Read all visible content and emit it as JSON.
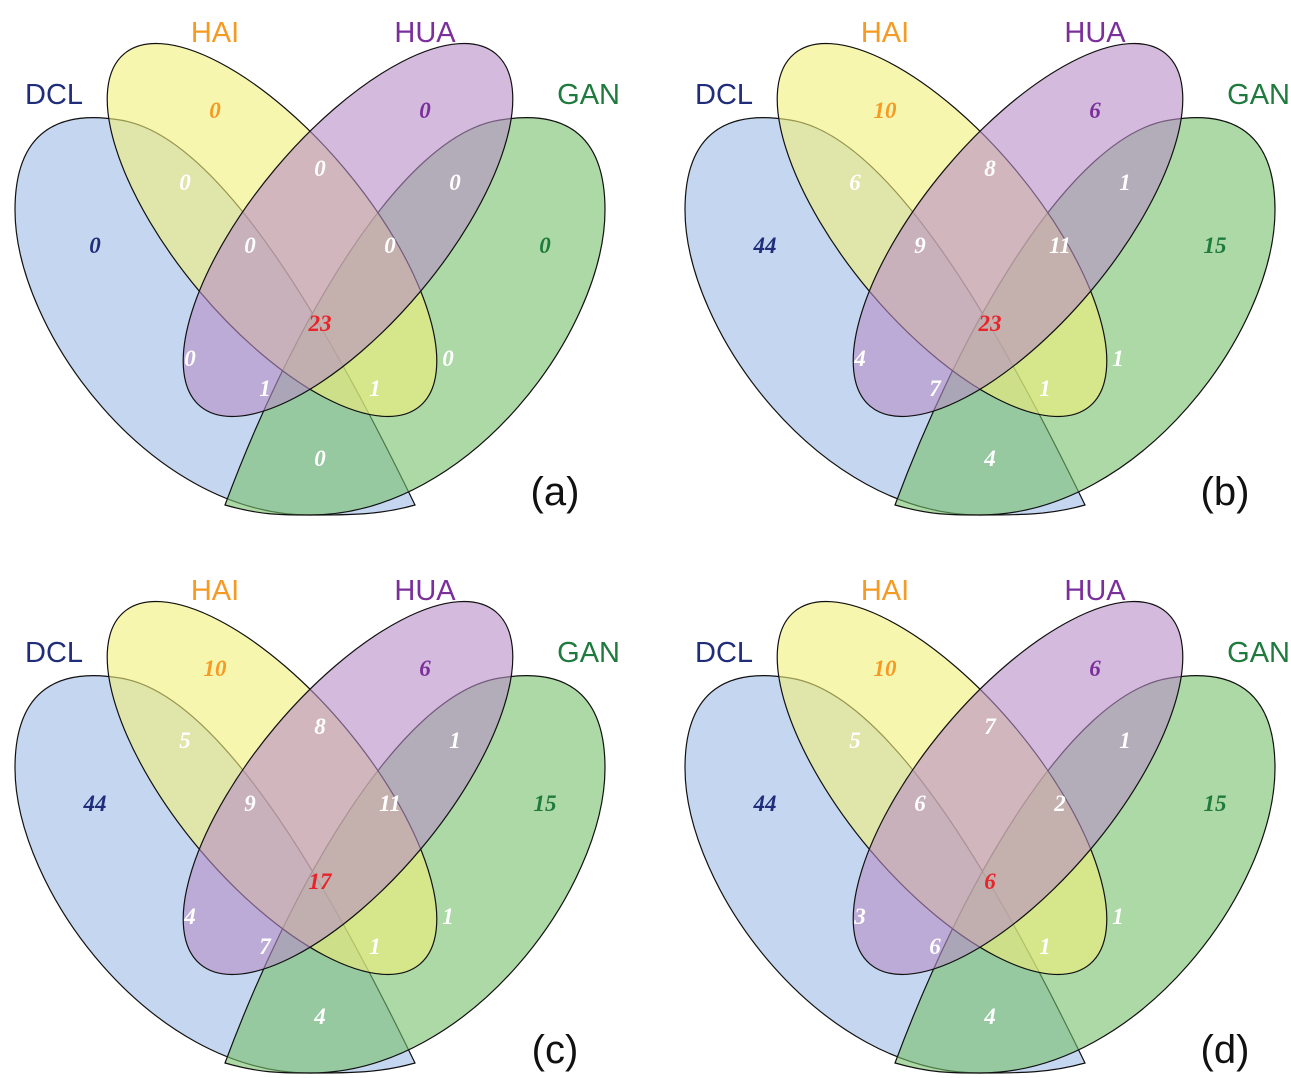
{
  "sets": [
    {
      "key": "DCL",
      "label": "DCL",
      "color": "#1f2d7a",
      "fill": "#9fbde6"
    },
    {
      "key": "HAI",
      "label": "HAI",
      "color": "#f59a23",
      "fill": "#f2f07a"
    },
    {
      "key": "HUA",
      "label": "HUA",
      "color": "#7b2f9b",
      "fill": "#b88ec7"
    },
    {
      "key": "GAN",
      "label": "GAN",
      "color": "#1f7a3e",
      "fill": "#76bf6a"
    }
  ],
  "colors": {
    "white_number": "#ffffff",
    "center_number": "#e8232a"
  },
  "panels": [
    {
      "label": "(a)",
      "regions": {
        "DCL": "0",
        "HAI": "0",
        "HUA": "0",
        "GAN": "0",
        "DCL_HAI": "0",
        "HUA_GAN": "0",
        "HAI_HUA": "0",
        "DCL_HAI_HUA": "0",
        "HAI_HUA_GAN": "0",
        "ALL": "23",
        "DCL_HUA": "0",
        "HAI_GAN": "0",
        "DCL_HUA_GAN": "1",
        "DCL_HAI_GAN": "1",
        "DCL_GAN": "0"
      }
    },
    {
      "label": "(b)",
      "regions": {
        "DCL": "44",
        "HAI": "10",
        "HUA": "6",
        "GAN": "15",
        "DCL_HAI": "6",
        "HUA_GAN": "1",
        "HAI_HUA": "8",
        "DCL_HAI_HUA": "9",
        "HAI_HUA_GAN": "11",
        "ALL": "23",
        "DCL_HUA": "4",
        "HAI_GAN": "1",
        "DCL_HUA_GAN": "7",
        "DCL_HAI_GAN": "1",
        "DCL_GAN": "4"
      }
    },
    {
      "label": "(c)",
      "regions": {
        "DCL": "44",
        "HAI": "10",
        "HUA": "6",
        "GAN": "15",
        "DCL_HAI": "5",
        "HUA_GAN": "1",
        "HAI_HUA": "8",
        "DCL_HAI_HUA": "9",
        "HAI_HUA_GAN": "11",
        "ALL": "17",
        "DCL_HUA": "4",
        "HAI_GAN": "1",
        "DCL_HUA_GAN": "7",
        "DCL_HAI_GAN": "1",
        "DCL_GAN": "4"
      }
    },
    {
      "label": "(d)",
      "regions": {
        "DCL": "44",
        "HAI": "10",
        "HUA": "6",
        "GAN": "15",
        "DCL_HAI": "5",
        "HUA_GAN": "1",
        "HAI_HUA": "7",
        "DCL_HAI_HUA": "6",
        "HAI_HUA_GAN": "2",
        "ALL": "6",
        "DCL_HUA": "3",
        "HAI_GAN": "1",
        "DCL_HUA_GAN": "6",
        "DCL_HAI_GAN": "1",
        "DCL_GAN": "4"
      }
    }
  ]
}
